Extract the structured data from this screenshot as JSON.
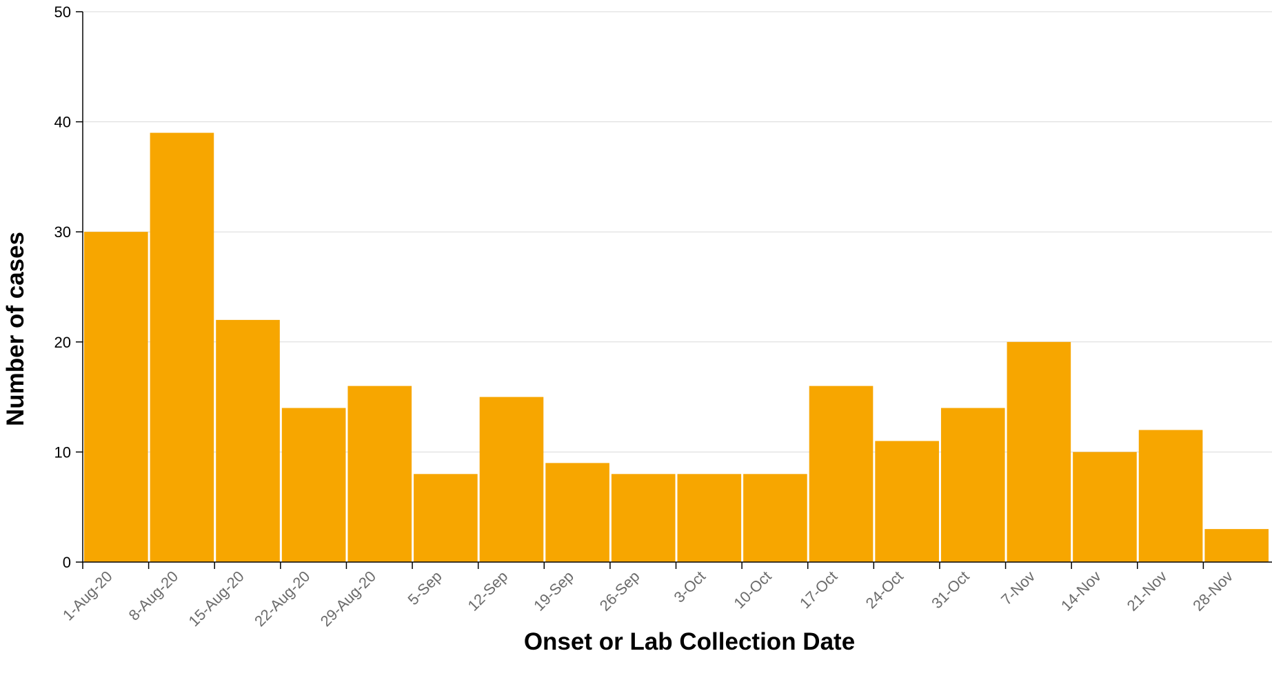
{
  "chart_data": {
    "type": "bar",
    "title": "",
    "xlabel": "Onset or Lab Collection Date",
    "ylabel": "Number of cases",
    "ylim": [
      0,
      50
    ],
    "yticks": [
      0,
      10,
      20,
      30,
      40,
      50
    ],
    "grid": "horizontal",
    "bar_color": "#f7a600",
    "categories": [
      "1-Aug-20",
      "8-Aug-20",
      "15-Aug-20",
      "22-Aug-20",
      "29-Aug-20",
      "5-Sep",
      "12-Sep",
      "19-Sep",
      "26-Sep",
      "3-Oct",
      "10-Oct",
      "17-Oct",
      "24-Oct",
      "31-Oct",
      "7-Nov",
      "14-Nov",
      "21-Nov",
      "28-Nov"
    ],
    "values": [
      30,
      39,
      22,
      14,
      16,
      8,
      15,
      9,
      8,
      8,
      8,
      16,
      11,
      14,
      20,
      10,
      12,
      3
    ]
  }
}
